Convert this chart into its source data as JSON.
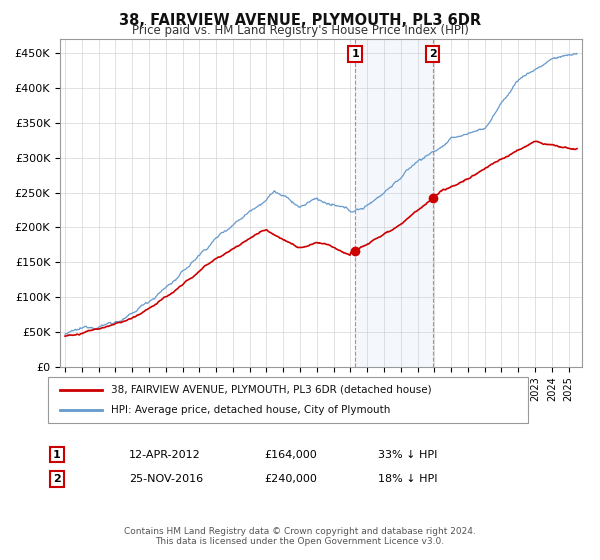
{
  "title": "38, FAIRVIEW AVENUE, PLYMOUTH, PL3 6DR",
  "subtitle": "Price paid vs. HM Land Registry's House Price Index (HPI)",
  "ylabel_ticks": [
    "£0",
    "£50K",
    "£100K",
    "£150K",
    "£200K",
    "£250K",
    "£300K",
    "£350K",
    "£400K",
    "£450K"
  ],
  "ytick_values": [
    0,
    50000,
    100000,
    150000,
    200000,
    250000,
    300000,
    350000,
    400000,
    450000
  ],
  "ylim": [
    0,
    470000
  ],
  "property_color": "#cc0000",
  "hpi_color": "#6699cc",
  "hpi_fill_color": "#ddeeff",
  "marker1_date": 2012.28,
  "marker1_price": 164000,
  "marker1_label": "1",
  "marker2_date": 2016.9,
  "marker2_price": 240000,
  "marker2_label": "2",
  "legend_property": "38, FAIRVIEW AVENUE, PLYMOUTH, PL3 6DR (detached house)",
  "legend_hpi": "HPI: Average price, detached house, City of Plymouth",
  "annotation1": "12-APR-2012",
  "annotation1_price": "£164,000",
  "annotation1_hpi": "33% ↓ HPI",
  "annotation2": "25-NOV-2016",
  "annotation2_price": "£240,000",
  "annotation2_hpi": "18% ↓ HPI",
  "footer": "Contains HM Land Registry data © Crown copyright and database right 2024.\nThis data is licensed under the Open Government Licence v3.0.",
  "background_color": "#ffffff"
}
